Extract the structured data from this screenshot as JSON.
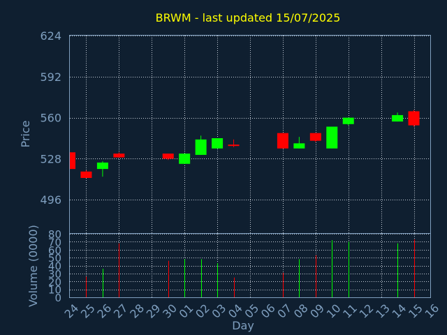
{
  "chart_data": {
    "type": "candlestick",
    "title": "BRWM - last updated 15/07/2025",
    "ylabel": "Price",
    "volume_ylabel": "Volume (0000)",
    "xlabel": "Day",
    "ylim": [
      470,
      624
    ],
    "price_ticks": [
      624,
      592,
      560,
      528,
      496
    ],
    "volume_ylim": [
      0,
      80
    ],
    "volume_ticks": [
      80,
      70,
      60,
      50,
      40,
      30,
      20,
      10,
      0
    ],
    "days": [
      "24",
      "25",
      "26",
      "27",
      "28",
      "29",
      "30",
      "01",
      "02",
      "03",
      "04",
      "05",
      "06",
      "07",
      "08",
      "09",
      "10",
      "11",
      "12",
      "13",
      "14",
      "15",
      "16"
    ],
    "up_color": "#00ff00",
    "down_color": "#ff0000",
    "candles": [
      {
        "day": "24",
        "open": 533,
        "high": 533,
        "low": 520,
        "close": 520
      },
      {
        "day": "25",
        "open": 518,
        "high": 519,
        "low": 513,
        "close": 513
      },
      {
        "day": "26",
        "open": 520,
        "high": 526,
        "low": 514,
        "close": 525
      },
      {
        "day": "27",
        "open": 532,
        "high": 533,
        "low": 529,
        "close": 529
      },
      {
        "day": "30",
        "open": 532,
        "high": 532,
        "low": 527,
        "close": 528
      },
      {
        "day": "01",
        "open": 524,
        "high": 532,
        "low": 524,
        "close": 532
      },
      {
        "day": "02",
        "open": 531,
        "high": 546,
        "low": 531,
        "close": 543
      },
      {
        "day": "03",
        "open": 536,
        "high": 544,
        "low": 536,
        "close": 544
      },
      {
        "day": "04",
        "open": 539,
        "high": 543,
        "low": 537,
        "close": 538
      },
      {
        "day": "07",
        "open": 548,
        "high": 548,
        "low": 536,
        "close": 536
      },
      {
        "day": "08",
        "open": 536,
        "high": 545,
        "low": 536,
        "close": 540
      },
      {
        "day": "09",
        "open": 548,
        "high": 548,
        "low": 541,
        "close": 542
      },
      {
        "day": "10",
        "open": 536,
        "high": 553,
        "low": 536,
        "close": 553
      },
      {
        "day": "11",
        "open": 555,
        "high": 560,
        "low": 554,
        "close": 560
      },
      {
        "day": "14",
        "open": 557,
        "high": 564,
        "low": 557,
        "close": 562
      },
      {
        "day": "15",
        "open": 565,
        "high": 566,
        "low": 553,
        "close": 554
      }
    ],
    "volumes": [
      {
        "day": "25",
        "value": 26
      },
      {
        "day": "26",
        "value": 36
      },
      {
        "day": "27",
        "value": 68
      },
      {
        "day": "30",
        "value": 46
      },
      {
        "day": "01",
        "value": 48
      },
      {
        "day": "02",
        "value": 48
      },
      {
        "day": "03",
        "value": 43
      },
      {
        "day": "04",
        "value": 25
      },
      {
        "day": "07",
        "value": 31
      },
      {
        "day": "08",
        "value": 48
      },
      {
        "day": "09",
        "value": 53
      },
      {
        "day": "10",
        "value": 72
      },
      {
        "day": "11",
        "value": 70
      },
      {
        "day": "14",
        "value": 68
      },
      {
        "day": "15",
        "value": 73
      }
    ]
  }
}
